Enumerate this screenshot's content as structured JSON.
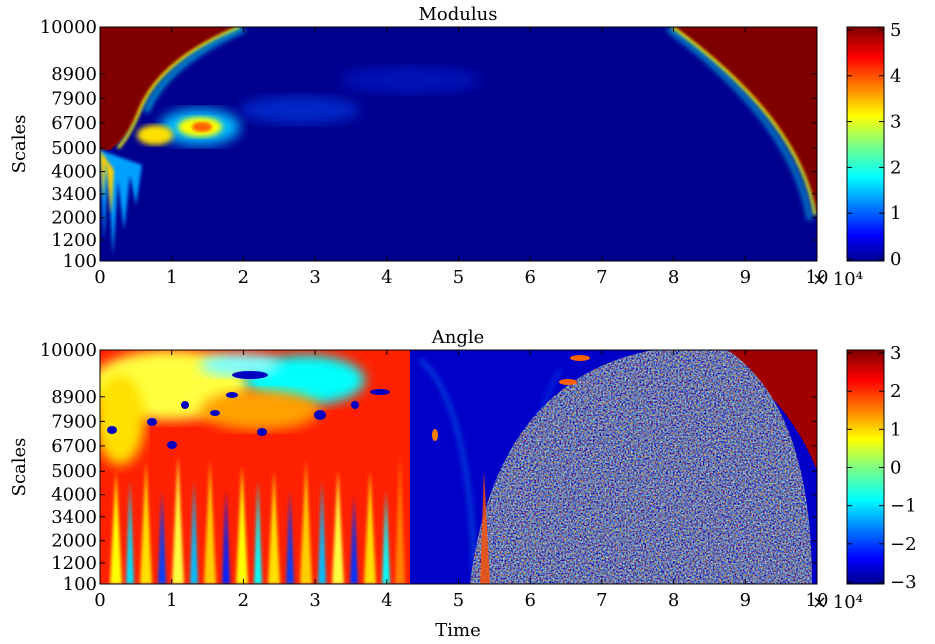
{
  "chart_data": [
    {
      "type": "heatmap",
      "title": "Modulus",
      "xlabel": "",
      "ylabel": "Scales",
      "xlim": [
        0,
        100000
      ],
      "x_ticks": [
        "0",
        "1",
        "2",
        "3",
        "4",
        "5",
        "6",
        "7",
        "8",
        "9",
        "10"
      ],
      "x_multiplier": "× 10⁴",
      "y_ticks": [
        "100",
        "1200",
        "2000",
        "3400",
        "4000",
        "5000",
        "6700",
        "7900",
        "8900",
        "10000"
      ],
      "colorbar": {
        "min": 0,
        "max": 5,
        "ticks": [
          "0",
          "1",
          "2",
          "3",
          "4",
          "5"
        ]
      },
      "colormap": "jet",
      "colors": {
        "low": "#00008f",
        "high": "#800000"
      }
    },
    {
      "type": "heatmap",
      "title": "Angle",
      "xlabel": "Time",
      "ylabel": "Scales",
      "xlim": [
        0,
        100000
      ],
      "x_ticks": [
        "0",
        "1",
        "2",
        "3",
        "4",
        "5",
        "6",
        "7",
        "8",
        "9",
        "10"
      ],
      "x_multiplier": "× 10⁴",
      "y_ticks": [
        "100",
        "1200",
        "2000",
        "3400",
        "4000",
        "5000",
        "6700",
        "7900",
        "8900",
        "10000"
      ],
      "colorbar": {
        "min": -3,
        "max": 3,
        "ticks": [
          "−3",
          "−2",
          "−1",
          "0",
          "1",
          "2",
          "3"
        ]
      },
      "colormap": "jet",
      "colors": {
        "low": "#00008f",
        "high": "#800000"
      }
    }
  ]
}
